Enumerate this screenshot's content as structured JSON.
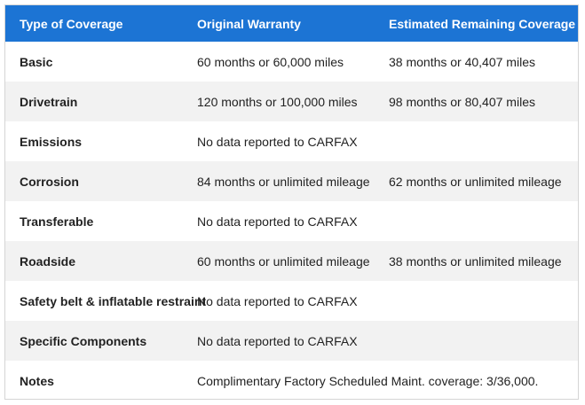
{
  "table": {
    "headers": [
      "Type of Coverage",
      "Original Warranty",
      "Estimated Remaining Coverage"
    ],
    "rows": [
      {
        "type": "Basic",
        "original": "60 months or 60,000 miles",
        "remaining": "38 months or 40,407 miles"
      },
      {
        "type": "Drivetrain",
        "original": "120 months or 100,000 miles",
        "remaining": "98 months or 80,407 miles"
      },
      {
        "type": "Emissions",
        "original": "No data reported to CARFAX",
        "remaining": ""
      },
      {
        "type": "Corrosion",
        "original": "84 months or unlimited mileage",
        "remaining": "62 months or unlimited mileage"
      },
      {
        "type": "Transferable",
        "original": "No data reported to CARFAX",
        "remaining": ""
      },
      {
        "type": "Roadside",
        "original": "60 months or unlimited mileage",
        "remaining": "38 months or unlimited mileage"
      },
      {
        "type": "Safety belt & inflatable restraint",
        "original": "No data reported to CARFAX",
        "remaining": ""
      },
      {
        "type": "Specific Components",
        "original": "No data reported to CARFAX",
        "remaining": ""
      },
      {
        "type": "Notes",
        "original": "Complimentary Factory Scheduled Maint. coverage: 3/36,000.",
        "remaining": ""
      }
    ]
  },
  "colors": {
    "header_bg": "#1c74d4",
    "header_text": "#ffffff",
    "stripe": "#f2f2f2"
  }
}
